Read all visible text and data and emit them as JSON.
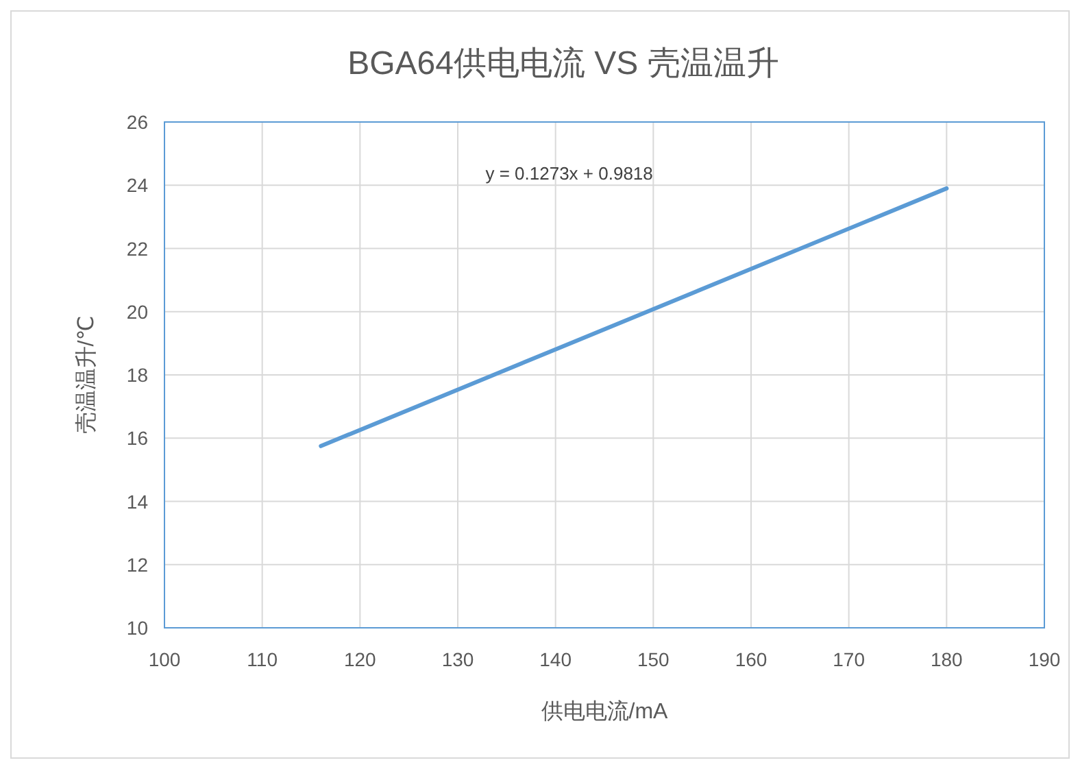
{
  "chart_data": {
    "type": "line",
    "title": "BGA64供电电流 VS 壳温温升",
    "xlabel": "供电电流/mA",
    "ylabel": "壳温温升/℃",
    "x": [
      116,
      180
    ],
    "series": [
      {
        "color": "#5b9bd5",
        "values": [
          15.75,
          23.9
        ]
      }
    ],
    "xlim": [
      100,
      190
    ],
    "xticks": [
      100,
      110,
      120,
      130,
      140,
      150,
      160,
      170,
      180,
      190
    ],
    "ylim": [
      10,
      26
    ],
    "yticks": [
      10,
      12,
      14,
      16,
      18,
      20,
      22,
      24,
      26
    ],
    "grid": true,
    "annotations": [
      "y = 0.1273x + 0.9818"
    ]
  }
}
